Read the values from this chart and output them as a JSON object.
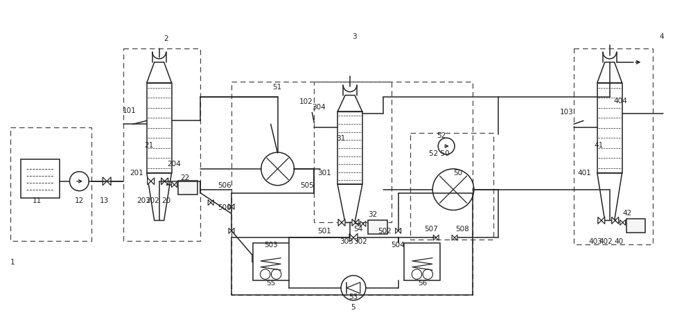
{
  "bg_color": "#ffffff",
  "line_color": "#222222",
  "lw": 1.1,
  "fig_width": 10.0,
  "fig_height": 4.56,
  "dpi": 100
}
